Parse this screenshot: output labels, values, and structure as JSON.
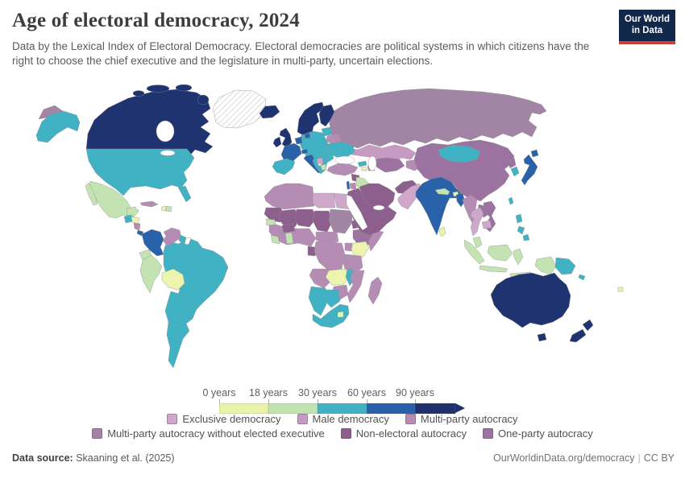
{
  "header": {
    "title": "Age of electoral democracy, 2024",
    "subtitle": "Data by the Lexical Index of Electoral Democracy. Electoral democracies are political systems in which citizens have the right to choose the chief executive and the legislature in multi-party, uncertain elections."
  },
  "logo": {
    "line1": "Our World",
    "line2": "in Data"
  },
  "legend": {
    "scale": {
      "tick_labels": [
        "0 years",
        "18 years",
        "30 years",
        "60 years",
        "90 years"
      ],
      "bin_colors": [
        "#e9f3a6",
        "#c1e3b0",
        "#3fb1c2",
        "#2560a8",
        "#1e316e"
      ],
      "segment_widths": [
        61,
        61,
        61,
        60,
        50
      ]
    },
    "categories": [
      {
        "label": "Exclusive democracy",
        "color": "#cfa7ca"
      },
      {
        "label": "Male democracy",
        "color": "#c79ac4"
      },
      {
        "label": "Multi-party autocracy",
        "color": "#b58db4"
      },
      {
        "label": "Multi-party autocracy without elected executive",
        "color": "#a284a4"
      },
      {
        "label": "Non-electoral autocracy",
        "color": "#8c5f8d"
      },
      {
        "label": "One-party autocracy",
        "color": "#9c72a0"
      }
    ]
  },
  "footer": {
    "source_label": "Data source:",
    "source_value": " Skaaning et al. (2025)",
    "right_text": "OurWorldinData.org/democracy",
    "separator": "|",
    "license": "CC BY"
  },
  "map": {
    "palette": {
      "age0": "#edf4ad",
      "age18": "#c3e4b2",
      "age30": "#41b2c4",
      "age60": "#2a62a9",
      "age90": "#1e336f",
      "exclusive": "#cfa7ca",
      "male": "#c79ac4",
      "mpa": "#b58db4",
      "mpaNoExec": "#a284a4",
      "nonElectoral": "#8c5f8d",
      "onePartyAuto": "#9c72a0",
      "noData": "#ffffff",
      "hatch": "url(#hatch)"
    },
    "regions": {
      "canada": "age90",
      "canada-arctic": "age90",
      "alaska": "age30",
      "usa": "age30",
      "florida": "age30",
      "greenland": "hatch",
      "chukotka": "mpaNoExec",
      "mexico": "age18",
      "baja": "age18",
      "guatemala": "age30",
      "honduras": "age0",
      "nicaragua": "mpa",
      "costa-rica": "age60",
      "panama": "age30",
      "cuba": "mpa",
      "haiti": "age0",
      "dominican-republic": "age18",
      "colombia": "age60",
      "venezuela": "mpa",
      "guyana": "age30",
      "suriname": "noData",
      "french-guiana": "age30",
      "ecuador": "age18",
      "peru": "age18",
      "bolivia": "age0",
      "brazil": "age30",
      "southern-cone": "age30",
      "iceland": "age90",
      "uk": "age90",
      "ireland": "age90",
      "norway-sweden": "age90",
      "finland": "age90",
      "denmark": "age60",
      "benelux": "age60",
      "france": "age60",
      "switzerland": "age60",
      "iberia": "age30",
      "central-europe": "age30",
      "italy": "age60",
      "balkans": "age30",
      "serbia": "exclusive",
      "montenegro": "age0",
      "albania": "age18",
      "baltics": "age30",
      "belarus": "mpa",
      "ukraine": "age30",
      "russia": "mpaNoExec",
      "kazakhstan": "male",
      "uzbek-turkmen": "onePartyAuto",
      "kyrgyz-tajik": "mpa",
      "georgia": "age30",
      "armenia": "age0",
      "azerbaijan": "mpa",
      "turkey": "mpa",
      "syria": "nonElectoral",
      "iraq": "age18",
      "israel": "age60",
      "jordan": "mpa",
      "saudi-arabia": "nonElectoral",
      "iran": "nonElectoral",
      "afghanistan": "nonElectoral",
      "pakistan": "exclusive",
      "india": "age60",
      "nepal": "age18",
      "bhutan": "age0",
      "bangladesh": "age60",
      "sri-lanka": "age0",
      "myanmar": "mpa",
      "thailand": "exclusive",
      "laos": "onePartyAuto",
      "vietnam": "onePartyAuto",
      "cambodia": "exclusive",
      "china": "onePartyAuto",
      "mongolia": "age30",
      "north-korea": "onePartyAuto",
      "south-korea": "age30",
      "japan": "age60",
      "hokkaido": "age60",
      "taiwan": "age30",
      "philippines-1": "age30",
      "philippines-2": "age30",
      "philippines-3": "age30",
      "malaysia": "age18",
      "sumatra": "age18",
      "java": "age18",
      "borneo": "age18",
      "sulawesi": "age18",
      "lesser-sunda": "age18",
      "west-papua": "age18",
      "png": "age30",
      "solomon": "age30",
      "fiji": "age0",
      "australia": "age90",
      "tasmania": "age90",
      "new-zealand-north": "age90",
      "new-zealand-south": "age90",
      "north-africa": "mpa",
      "egypt": "exclusive",
      "libya": "exclusive",
      "mauritania": "nonElectoral",
      "mali": "nonElectoral",
      "niger": "nonElectoral",
      "chad": "nonElectoral",
      "sudan": "mpaNoExec",
      "eritrea": "nonElectoral",
      "ethiopia": "onePartyAuto",
      "somalia": "mpa",
      "west-africa": "mpa",
      "senegal": "age18",
      "liberia": "age18",
      "ghana": "age18",
      "burkina-faso": "nonElectoral",
      "cameroon-car": "mpa",
      "gabon": "nonElectoral",
      "drc": "mpa",
      "uganda": "mpa",
      "kenya": "age0",
      "tanzania": "mpa",
      "angola": "mpa",
      "zambia": "age0",
      "malawi": "age30",
      "mozambique": "mpa",
      "zimbabwe": "mpa",
      "namibia": "age30",
      "botswana": "age30",
      "south-africa": "age30",
      "lesotho": "age0",
      "madagascar": "mpa"
    }
  }
}
